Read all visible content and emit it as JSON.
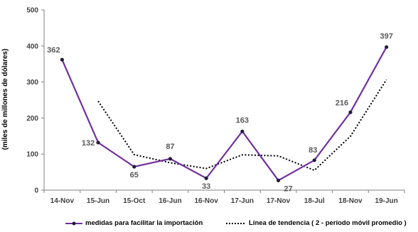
{
  "chart_data": {
    "type": "line",
    "categories": [
      "14-Nov",
      "15-Jun",
      "15-Oct",
      "16-Jun",
      "16-Nov",
      "17-Jun",
      "17-Nov",
      "18-Jul",
      "18-Nov",
      "19-Jun"
    ],
    "series": [
      {
        "name": "medidas para facilitar la importación",
        "values": [
          362,
          132,
          65,
          87,
          33,
          163,
          27,
          83,
          216,
          397
        ],
        "color": "#7030A0",
        "style": "solid-with-markers",
        "data_labels": [
          "362",
          "132",
          "65",
          "87",
          "33",
          "163",
          "27",
          "83",
          "216",
          "397"
        ]
      },
      {
        "name": "Línea de tendencia ( 2 -  período móvil promedio )",
        "values": [
          null,
          247,
          98.5,
          76,
          60,
          98,
          95,
          55,
          149.5,
          306.5
        ],
        "color": "#000000",
        "style": "dotted"
      }
    ],
    "ylabel": "(miles de millones de dólares)",
    "xlabel": "",
    "title": "",
    "ylim": [
      0,
      500
    ],
    "yticks": [
      "0",
      "100",
      "200",
      "300",
      "400",
      "500"
    ],
    "grid": false,
    "legend_position": "bottom"
  }
}
